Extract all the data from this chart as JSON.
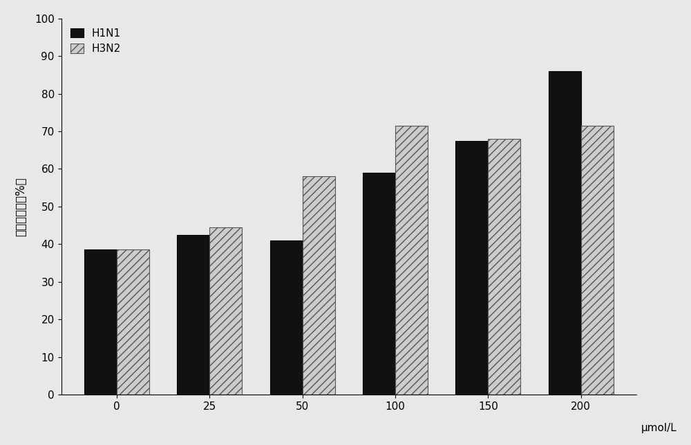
{
  "categories": [
    0,
    25,
    50,
    100,
    150,
    200
  ],
  "H1N1_values": [
    38.5,
    42.5,
    41.0,
    59.0,
    67.5,
    86.0
  ],
  "H3N2_values": [
    38.5,
    44.5,
    58.0,
    71.5,
    68.0,
    71.5
  ],
  "H1N1_color": "#111111",
  "H3N2_hatch": "///",
  "H3N2_facecolor": "#cccccc",
  "H3N2_edgecolor": "#555555",
  "ylabel": "细胞存活率（%）",
  "xlabel": "μmol/L",
  "ylim": [
    0,
    100
  ],
  "yticks": [
    0,
    10,
    20,
    30,
    40,
    50,
    60,
    70,
    80,
    90,
    100
  ],
  "legend_H1N1": "H1N1",
  "legend_H3N2": "H3N2",
  "bar_width": 0.35,
  "background_color": "#e8e8e8",
  "title_fontsize": 13,
  "axis_fontsize": 12,
  "tick_fontsize": 11,
  "legend_fontsize": 11
}
